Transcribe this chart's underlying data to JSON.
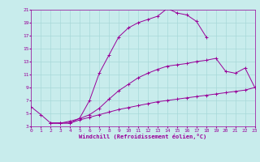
{
  "xlabel": "Windchill (Refroidissement éolien,°C)",
  "bg_color": "#c8ecec",
  "grid_color": "#a8d8d8",
  "line_color": "#990099",
  "xlim": [
    0,
    23
  ],
  "ylim": [
    3,
    21
  ],
  "xticks": [
    0,
    1,
    2,
    3,
    4,
    5,
    6,
    7,
    8,
    9,
    10,
    11,
    12,
    13,
    14,
    15,
    16,
    17,
    18,
    19,
    20,
    21,
    22,
    23
  ],
  "yticks": [
    3,
    5,
    7,
    9,
    11,
    13,
    15,
    17,
    19,
    21
  ],
  "line1_x": [
    0,
    1,
    2,
    3,
    4,
    5,
    6,
    7,
    8,
    9,
    10,
    11,
    12,
    13,
    14,
    15,
    16,
    17,
    18
  ],
  "line1_y": [
    6.0,
    4.8,
    3.5,
    3.5,
    3.5,
    4.3,
    7.0,
    11.2,
    14.0,
    16.8,
    18.2,
    19.0,
    19.5,
    20.0,
    21.2,
    20.5,
    20.2,
    19.2,
    16.8
  ],
  "line2_x": [
    2,
    3,
    4,
    5,
    6,
    7,
    8,
    9,
    10,
    11,
    12,
    13,
    14,
    15,
    16,
    17,
    18,
    19,
    20,
    21,
    22,
    23
  ],
  "line2_y": [
    3.5,
    3.5,
    3.5,
    4.0,
    4.4,
    4.8,
    5.2,
    5.6,
    5.9,
    6.2,
    6.5,
    6.8,
    7.0,
    7.2,
    7.4,
    7.6,
    7.8,
    8.0,
    8.2,
    8.4,
    8.6,
    9.0
  ],
  "line3_x": [
    2,
    3,
    4,
    5,
    6,
    7,
    8,
    9,
    10,
    11,
    12,
    13,
    14,
    15,
    16,
    17,
    18,
    19,
    20,
    21,
    22,
    23
  ],
  "line3_y": [
    3.5,
    3.5,
    3.8,
    4.2,
    4.8,
    5.8,
    7.2,
    8.5,
    9.5,
    10.5,
    11.2,
    11.8,
    12.3,
    12.5,
    12.7,
    13.0,
    13.2,
    13.5,
    11.5,
    11.2,
    12.0,
    9.0
  ]
}
